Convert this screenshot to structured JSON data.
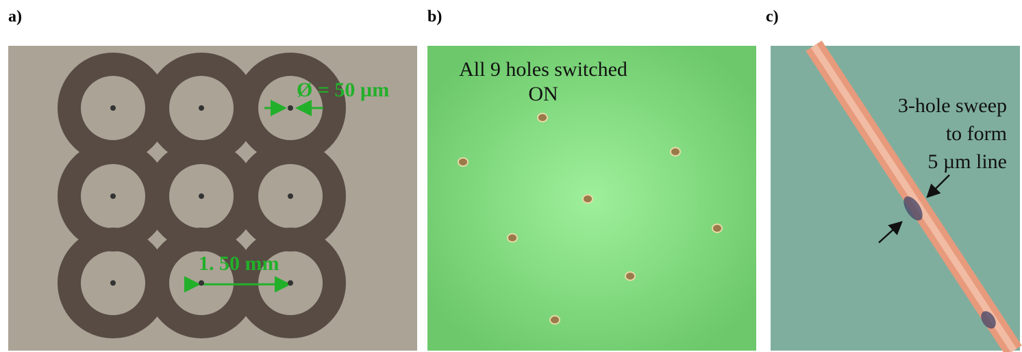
{
  "panels": [
    {
      "label": "a)",
      "annotations": [
        "Ø = 50 µm",
        "1. 50 mm"
      ]
    },
    {
      "label": "b)",
      "annotations": [
        "All 9 holes switched",
        "ON"
      ]
    },
    {
      "label": "c)",
      "annotations": [
        "3-hole sweep",
        "to form",
        "5 µm line"
      ]
    }
  ]
}
